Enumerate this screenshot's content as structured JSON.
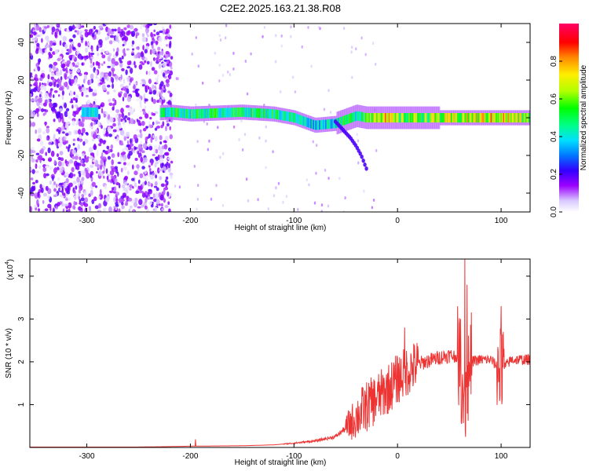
{
  "title": "C2E2.2025.163.21.38.R08",
  "top_panel": {
    "xlabel": "Height of straight line (km)",
    "ylabel": "Frequency (Hz)",
    "xticks": [
      -300,
      -200,
      -100,
      0,
      100
    ],
    "yticks": [
      -40,
      -20,
      0,
      20,
      40
    ],
    "colorbar": {
      "label": "Normalized spectral amplitude",
      "ticks": [
        "0.0",
        "0.2",
        "0.4",
        "0.6",
        "0.8"
      ]
    }
  },
  "bottom_panel": {
    "xlabel": "Height of straight line (km)",
    "ylabel": "SNR (10 * v/v)",
    "multiplier_label": "(x10",
    "multiplier_exp": "4",
    "multiplier_close": ")",
    "xticks": [
      -300,
      -200,
      -100,
      0,
      100
    ],
    "yticks": [
      "1",
      "2",
      "3",
      "4"
    ]
  },
  "colors": {
    "snr_line": "#ee3333",
    "colormap": [
      "#ffffff",
      "#d8c8ff",
      "#9b00ff",
      "#3300ff",
      "#0077ff",
      "#00e0ff",
      "#00ff88",
      "#00ff00",
      "#b0ff00",
      "#ffee00",
      "#ff8800",
      "#ff0000",
      "#ff0066"
    ]
  },
  "chart_data": [
    {
      "type": "heatmap",
      "title": "C2E2.2025.163.21.38.R08",
      "xlabel": "Height of straight line (km)",
      "ylabel": "Frequency (Hz)",
      "xlim": [
        -355,
        128
      ],
      "ylim": [
        -50,
        50
      ],
      "zlim": [
        0,
        1
      ],
      "zlabel": "Normalized spectral amplitude",
      "signal_trace": {
        "x": [
          -300,
          -250,
          -220,
          -200,
          -150,
          -120,
          -100,
          -80,
          -60,
          -50,
          -40,
          -30,
          -20,
          -10,
          0,
          50,
          100,
          128
        ],
        "frequency": [
          3,
          2,
          3,
          2,
          3,
          2,
          0,
          -4,
          -3,
          -1,
          1,
          0,
          0,
          0,
          0,
          0,
          0,
          0
        ],
        "amplitude": [
          0.4,
          0.3,
          0.5,
          0.5,
          0.5,
          0.5,
          0.45,
          0.4,
          0.45,
          0.5,
          0.5,
          0.6,
          0.8,
          0.7,
          0.6,
          0.65,
          0.75,
          0.6
        ]
      },
      "secondary_trace": {
        "x": [
          -60,
          -55,
          -50,
          -45,
          -40,
          -35,
          -30
        ],
        "frequency": [
          -2,
          -5,
          -8,
          -11,
          -15,
          -20,
          -27
        ]
      }
    },
    {
      "type": "line",
      "xlabel": "Height of straight line (km)",
      "ylabel": "SNR (10 * v/v)",
      "xlim": [
        -355,
        128
      ],
      "ylim": [
        0,
        4.4
      ],
      "y_multiplier": "x10^4",
      "x": [
        -355,
        -300,
        -250,
        -220,
        -200,
        -150,
        -120,
        -100,
        -80,
        -60,
        -50,
        -40,
        -30,
        -20,
        -10,
        0,
        10,
        20,
        40,
        50,
        60,
        65,
        70,
        80,
        90,
        100,
        110,
        128
      ],
      "values": [
        0.01,
        0.01,
        0.01,
        0.02,
        0.03,
        0.04,
        0.06,
        0.1,
        0.15,
        0.25,
        0.45,
        0.7,
        0.95,
        1.15,
        1.35,
        1.6,
        1.8,
        1.95,
        2.1,
        2.15,
        2.1,
        1.0,
        2.0,
        2.05,
        2.05,
        1.8,
        2.05,
        2.05
      ],
      "spikes": [
        {
          "x": -195,
          "y": 0.19
        },
        {
          "x": 7,
          "y": 2.8
        },
        {
          "x": 65,
          "y": 4.4
        },
        {
          "x": 67,
          "y": 3.8
        },
        {
          "x": 100,
          "y": 3.3
        }
      ]
    }
  ]
}
